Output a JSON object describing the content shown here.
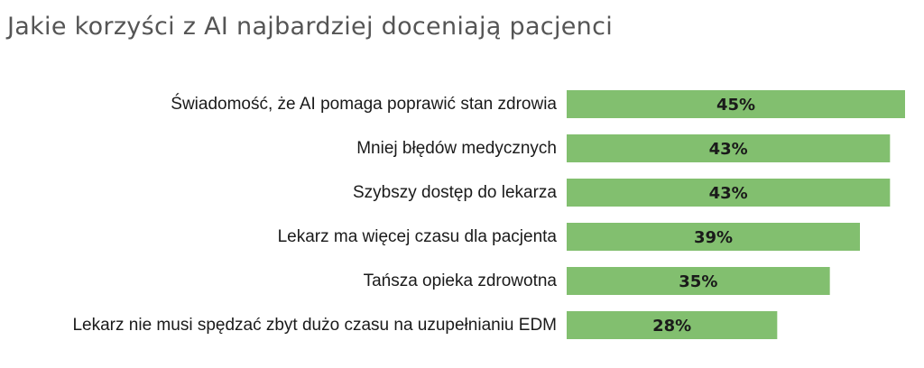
{
  "title": "Jakie korzyści z AI najbardziej doceniają pacjenci",
  "colors": {
    "bar": "#82bf6f",
    "text": "#1a1a1a",
    "title": "#555555",
    "background": "#ffffff"
  },
  "chart_data": {
    "type": "bar",
    "orientation": "horizontal",
    "title": "Jakie korzyści z AI najbardziej doceniają pacjenci",
    "categories": [
      "Świadomość, że AI pomaga poprawić stan zdrowia",
      "Mniej błędów medycznych",
      "Szybszy dostęp do lekarza",
      "Lekarz ma więcej czasu dla pacjenta",
      "Tańsza opieka zdrowotna",
      "Lekarz nie musi spędzać zbyt dużo czasu na uzupełnianiu EDM"
    ],
    "values": [
      45,
      43,
      43,
      39,
      35,
      28
    ],
    "value_labels": [
      "45%",
      "43%",
      "43%",
      "39%",
      "35%",
      "28%"
    ],
    "unit": "%",
    "xlim": [
      0,
      45
    ],
    "grid": false,
    "legend": "none"
  }
}
